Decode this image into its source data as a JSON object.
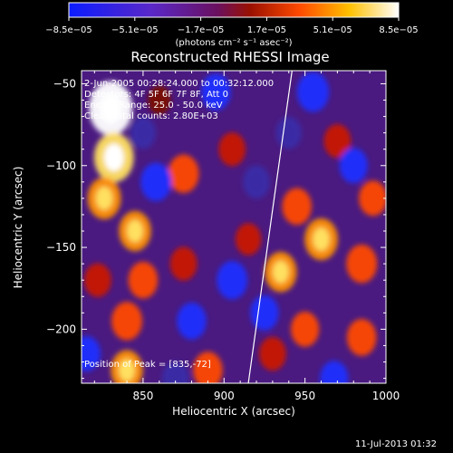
{
  "chart_data": {
    "type": "heatmap",
    "title": "Reconstructed RHESSI Image",
    "xlabel": "Heliocentric X (arcsec)",
    "ylabel": "Heliocentric Y (arcsec)",
    "xlim": [
      812,
      1000
    ],
    "ylim": [
      -233,
      -42
    ],
    "x_ticks": [
      850,
      900,
      950,
      1000
    ],
    "y_ticks": [
      -50,
      -100,
      -150,
      -200
    ],
    "x_tick_labels": [
      "850",
      "900",
      "950",
      "1000"
    ],
    "y_tick_labels": [
      "−50",
      "−100",
      "−150",
      "−200"
    ],
    "colorbar": {
      "min": -8.5e-05,
      "max": 8.5e-05,
      "tick_labels": [
        "−8.5e−05",
        "−5.1e−05",
        "−1.7e−05",
        "1.7e−05",
        "5.1e−05",
        "8.5e−05"
      ],
      "unit_label": "(photons cm⁻² s⁻¹ asec⁻²)",
      "colors": [
        "#0a1cff",
        "#7a2fa8",
        "#7a1000",
        "#ff4a00",
        "#ffc000",
        "#ffffff"
      ]
    },
    "annotations": {
      "time_range": "2-Jun-2005 00:28:24.000 to 00:32:12.000",
      "detectors": "Detectors: 4F 5F 6F 7F 8F, Att 0",
      "energy_range": "Energy Range: 25.0 - 50.0 keV",
      "clean": "Clean  Total counts: 2.80E+03",
      "peak": "Position of Peak = [835,-72]"
    },
    "peak_position": [
      835,
      -72
    ],
    "limb_line": [
      [
        915,
        -233
      ],
      [
        942,
        -42
      ]
    ],
    "blobs": [
      {
        "x": 830,
        "y": -65,
        "v": 1.0
      },
      {
        "x": 832,
        "y": -95,
        "v": 0.85
      },
      {
        "x": 826,
        "y": -120,
        "v": 0.6
      },
      {
        "x": 845,
        "y": -140,
        "v": 0.55
      },
      {
        "x": 850,
        "y": -170,
        "v": 0.45
      },
      {
        "x": 822,
        "y": -170,
        "v": 0.35
      },
      {
        "x": 840,
        "y": -195,
        "v": 0.5
      },
      {
        "x": 840,
        "y": -225,
        "v": 0.55
      },
      {
        "x": 875,
        "y": -105,
        "v": 0.5
      },
      {
        "x": 875,
        "y": -160,
        "v": 0.35
      },
      {
        "x": 890,
        "y": -225,
        "v": 0.45
      },
      {
        "x": 905,
        "y": -90,
        "v": 0.35
      },
      {
        "x": 915,
        "y": -145,
        "v": 0.3
      },
      {
        "x": 935,
        "y": -165,
        "v": 0.55
      },
      {
        "x": 945,
        "y": -125,
        "v": 0.45
      },
      {
        "x": 950,
        "y": -200,
        "v": 0.4
      },
      {
        "x": 960,
        "y": -145,
        "v": 0.6
      },
      {
        "x": 985,
        "y": -160,
        "v": 0.5
      },
      {
        "x": 992,
        "y": -120,
        "v": 0.4
      },
      {
        "x": 985,
        "y": -205,
        "v": 0.45
      },
      {
        "x": 970,
        "y": -85,
        "v": 0.35
      },
      {
        "x": 930,
        "y": -215,
        "v": 0.35
      },
      {
        "x": 860,
        "y": -60,
        "v": 0.2
      },
      {
        "x": 955,
        "y": -55,
        "v": -0.55
      },
      {
        "x": 895,
        "y": -55,
        "v": -0.45
      },
      {
        "x": 858,
        "y": -110,
        "v": -0.5
      },
      {
        "x": 905,
        "y": -170,
        "v": -0.5
      },
      {
        "x": 880,
        "y": -195,
        "v": -0.45
      },
      {
        "x": 925,
        "y": -190,
        "v": -0.4
      },
      {
        "x": 968,
        "y": -230,
        "v": -0.4
      },
      {
        "x": 870,
        "y": -230,
        "v": -0.35
      },
      {
        "x": 980,
        "y": -100,
        "v": -0.4
      },
      {
        "x": 920,
        "y": -110,
        "v": -0.35
      },
      {
        "x": 815,
        "y": -215,
        "v": -0.4
      },
      {
        "x": 850,
        "y": -80,
        "v": -0.3
      },
      {
        "x": 940,
        "y": -80,
        "v": -0.3
      }
    ]
  },
  "footer_date": "11-Jul-2013 01:32"
}
